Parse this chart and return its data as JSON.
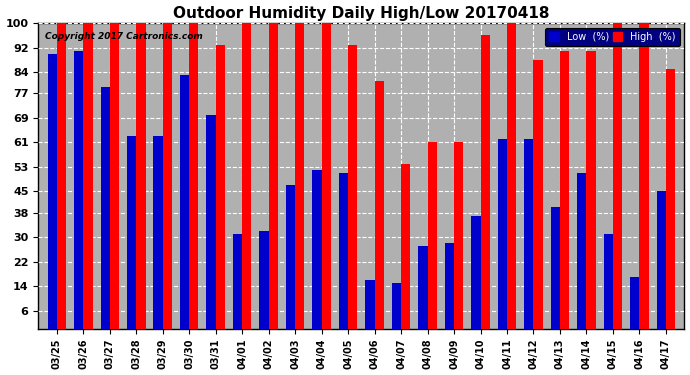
{
  "title": "Outdoor Humidity Daily High/Low 20170418",
  "copyright": "Copyright 2017 Cartronics.com",
  "categories": [
    "03/25",
    "03/26",
    "03/27",
    "03/28",
    "03/29",
    "03/30",
    "03/31",
    "04/01",
    "04/02",
    "04/03",
    "04/04",
    "04/05",
    "04/06",
    "04/07",
    "04/08",
    "04/09",
    "04/10",
    "04/11",
    "04/12",
    "04/13",
    "04/14",
    "04/15",
    "04/16",
    "04/17"
  ],
  "high": [
    100,
    100,
    100,
    100,
    100,
    100,
    93,
    100,
    100,
    100,
    100,
    93,
    81,
    54,
    61,
    61,
    96,
    100,
    88,
    91,
    91,
    100,
    100,
    85
  ],
  "low": [
    90,
    91,
    79,
    63,
    63,
    83,
    70,
    31,
    32,
    47,
    52,
    51,
    16,
    15,
    27,
    28,
    37,
    62,
    62,
    40,
    51,
    31,
    17,
    45
  ],
  "high_color": "#ff0000",
  "low_color": "#0000cc",
  "bg_color": "#ffffff",
  "plot_bg_color": "#b0b0b0",
  "ylim": [
    6,
    100
  ],
  "yticks": [
    6,
    14,
    22,
    30,
    38,
    45,
    53,
    61,
    69,
    77,
    84,
    92,
    100
  ],
  "bar_width": 0.35,
  "legend_low_label": "Low  (%)",
  "legend_high_label": "High  (%)"
}
